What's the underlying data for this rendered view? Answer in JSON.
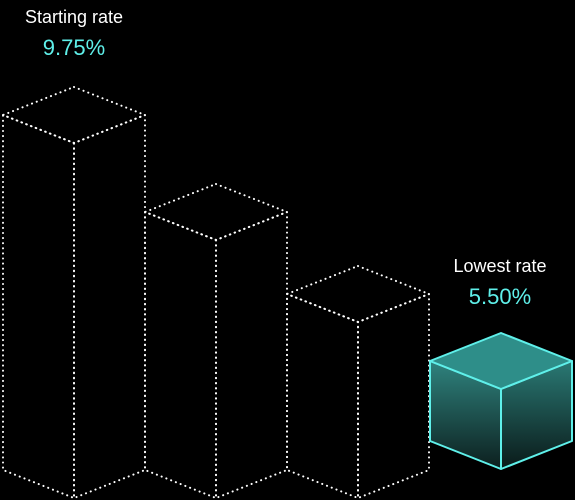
{
  "chart_data": {
    "type": "bar",
    "style": "isometric-3d",
    "categories": [
      "Starting rate",
      "",
      "",
      "Lowest rate"
    ],
    "values": [
      9.75,
      null,
      null,
      5.5
    ],
    "unit": "%",
    "annotations": [
      {
        "category_index": 0,
        "title": "Starting rate",
        "value_label": "9.75%"
      },
      {
        "category_index": 3,
        "title": "Lowest rate",
        "value_label": "5.50%"
      }
    ],
    "title": "",
    "xlabel": "",
    "ylabel": "",
    "grid": false,
    "legend": "none"
  },
  "colors": {
    "background": "#000000",
    "outline": "#ffffff",
    "accent": "#5ff0ea",
    "highlight_top": "#2e8e89",
    "highlight_side_top": "#2f837e",
    "highlight_side_bottom": "#0c1f1e"
  }
}
